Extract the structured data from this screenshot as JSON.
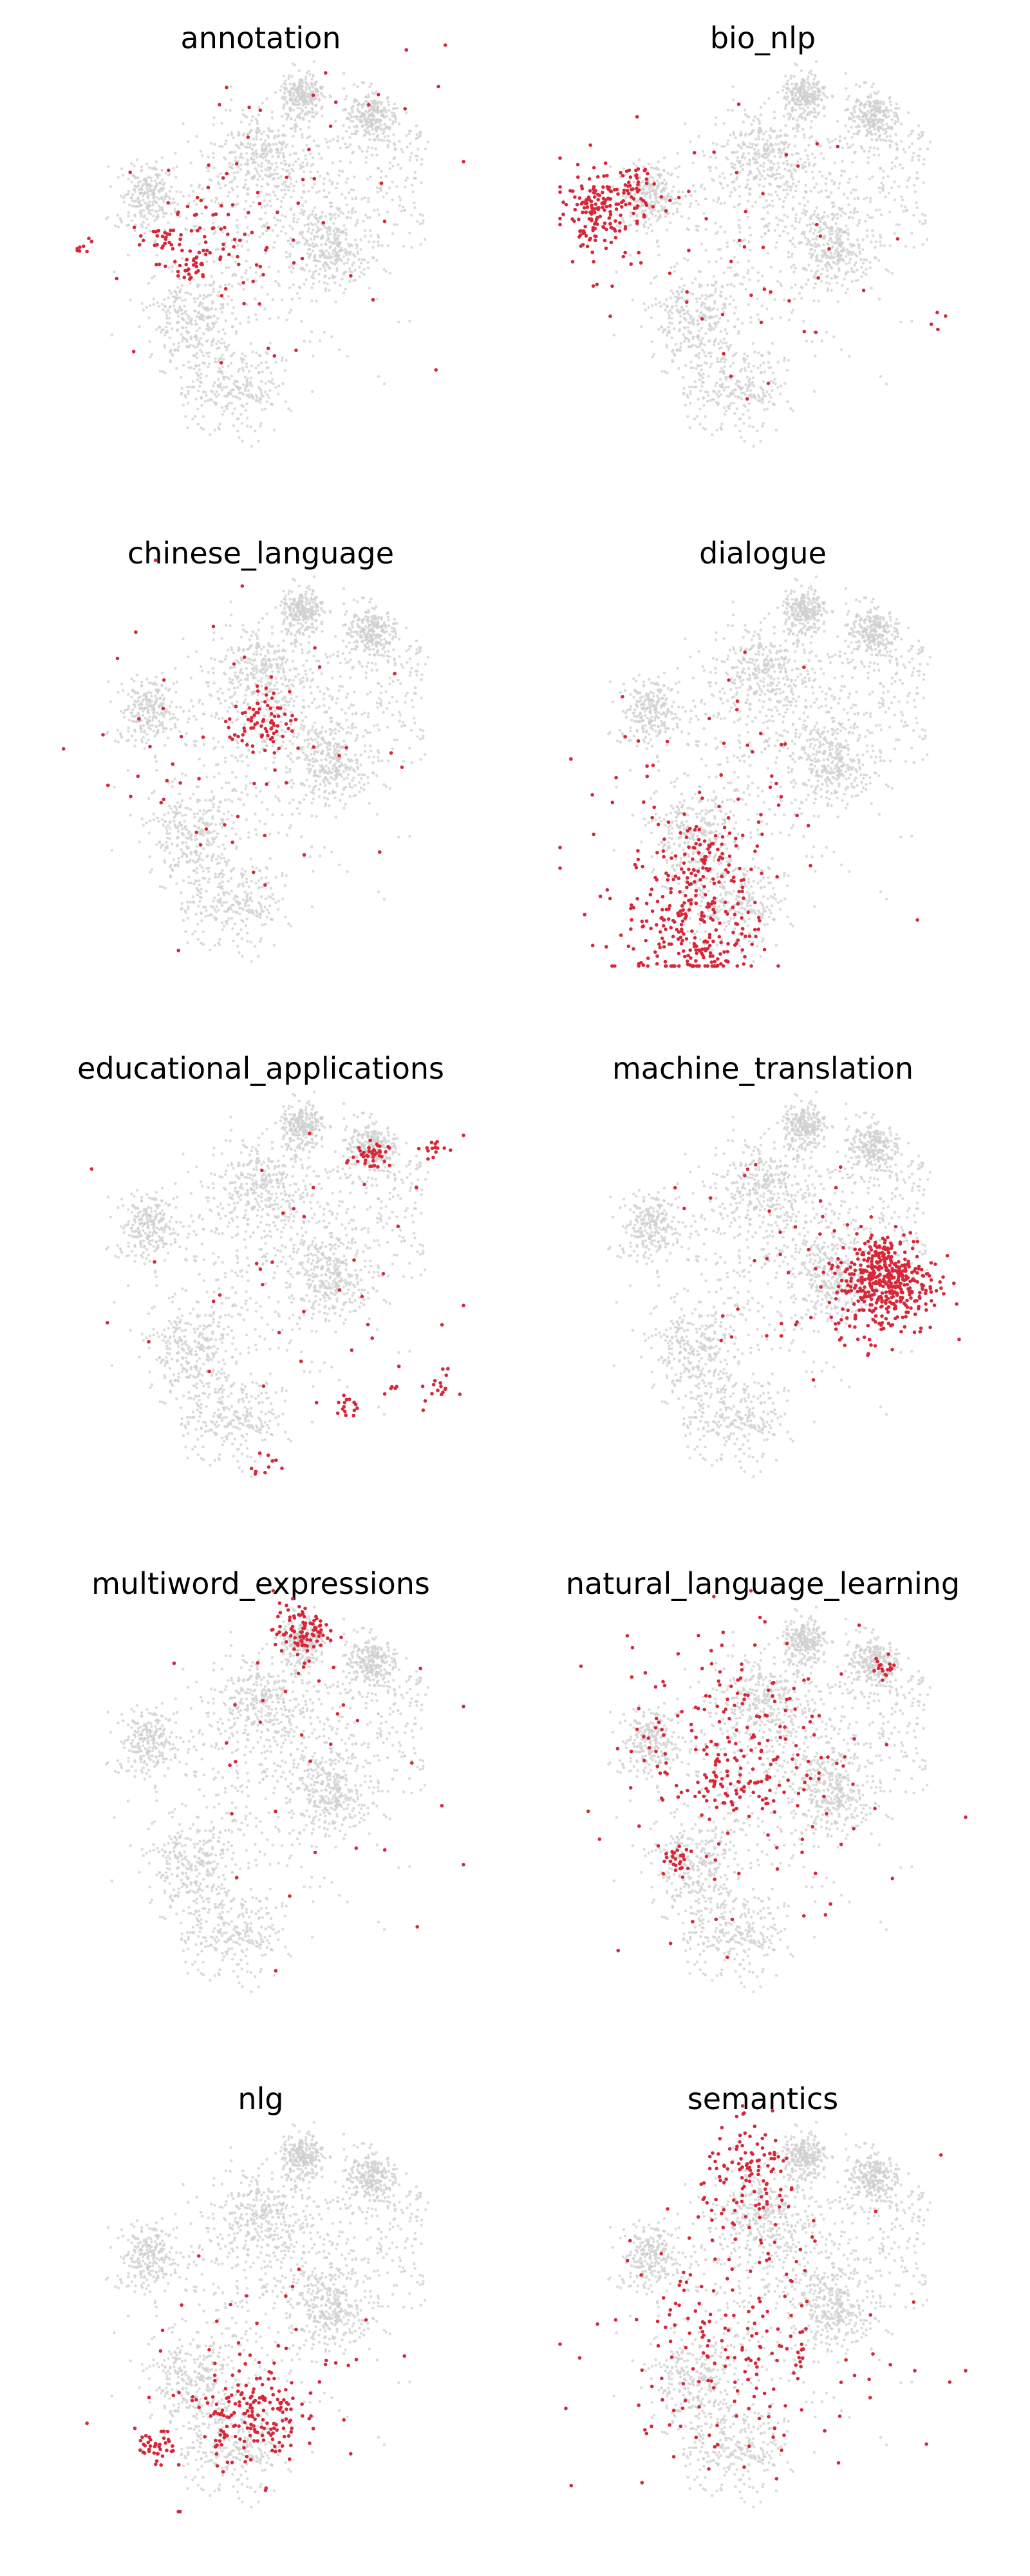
{
  "chart_data": {
    "type": "scatter",
    "highlight_color": "#d62839",
    "background_color": "#cfcfcf",
    "axes_visible": false,
    "grid": false,
    "panels": [
      {
        "title": "annotation",
        "clusters": [
          {
            "x": -0.48,
            "y": 0.04,
            "sd": 0.05,
            "n": 28
          },
          {
            "x": -0.35,
            "y": -0.1,
            "sd": 0.05,
            "n": 28
          },
          {
            "x": -0.2,
            "y": 0.05,
            "sd": 0.14,
            "n": 55
          },
          {
            "x": 0.05,
            "y": 0.22,
            "sd": 0.45,
            "n": 50
          },
          {
            "x": -0.87,
            "y": 0.01,
            "sd": 0.03,
            "n": 8
          }
        ]
      },
      {
        "title": "bio_nlp",
        "clusters": [
          {
            "x": -0.82,
            "y": 0.18,
            "sd": 0.09,
            "n": 150
          },
          {
            "x": -0.65,
            "y": 0.28,
            "sd": 0.06,
            "n": 45
          },
          {
            "x": -0.2,
            "y": 0.05,
            "sd": 0.35,
            "n": 55
          },
          {
            "x": 0.85,
            "y": -0.35,
            "sd": 0.05,
            "n": 4
          }
        ]
      },
      {
        "title": "chinese_language",
        "clusters": [
          {
            "x": 0.0,
            "y": 0.2,
            "sd": 0.07,
            "n": 75
          },
          {
            "x": -0.05,
            "y": 0.1,
            "sd": 0.4,
            "n": 55
          }
        ]
      },
      {
        "title": "dialogue",
        "clusters": [
          {
            "x": -0.35,
            "y": -0.78,
            "sd": 0.18,
            "n": 230
          },
          {
            "x": -0.3,
            "y": -0.45,
            "sd": 0.1,
            "n": 55
          },
          {
            "x": -0.25,
            "y": -0.95,
            "sd": 0.05,
            "n": 30
          },
          {
            "x": -0.3,
            "y": -0.3,
            "sd": 0.35,
            "n": 70
          }
        ]
      },
      {
        "title": "educational_applications",
        "clusters": [
          {
            "x": 0.55,
            "y": 0.6,
            "sd": 0.04,
            "n": 40
          },
          {
            "x": 0.85,
            "y": 0.64,
            "sd": 0.03,
            "n": 15
          },
          {
            "x": 0.87,
            "y": -0.53,
            "sd": 0.04,
            "n": 16
          },
          {
            "x": 0.42,
            "y": -0.65,
            "sd": 0.03,
            "n": 14
          },
          {
            "x": 0.65,
            "y": -0.55,
            "sd": 0.02,
            "n": 5
          },
          {
            "x": 0.0,
            "y": -0.92,
            "sd": 0.04,
            "n": 10
          },
          {
            "x": 0.2,
            "y": -0.1,
            "sd": 0.4,
            "n": 40
          }
        ]
      },
      {
        "title": "machine_translation",
        "clusters": [
          {
            "x": 0.6,
            "y": -0.02,
            "sd": 0.13,
            "n": 380
          },
          {
            "x": 0.6,
            "y": 0.05,
            "sd": 0.06,
            "n": 80
          },
          {
            "x": 0.1,
            "y": 0.05,
            "sd": 0.3,
            "n": 35
          }
        ]
      },
      {
        "title": "multiword_expressions",
        "clusters": [
          {
            "x": 0.2,
            "y": 0.8,
            "sd": 0.07,
            "n": 95
          },
          {
            "x": 0.0,
            "y": 0.1,
            "sd": 0.45,
            "n": 30
          }
        ]
      },
      {
        "title": "natural_language_learning",
        "clusters": [
          {
            "x": -0.15,
            "y": 0.25,
            "sd": 0.25,
            "n": 180
          },
          {
            "x": -0.42,
            "y": -0.32,
            "sd": 0.03,
            "n": 25
          },
          {
            "x": 0.6,
            "y": 0.62,
            "sd": 0.03,
            "n": 18
          },
          {
            "x": -0.18,
            "y": 0.05,
            "sd": 0.08,
            "n": 30
          },
          {
            "x": 0.0,
            "y": 0.0,
            "sd": 0.45,
            "n": 60
          }
        ]
      },
      {
        "title": "nlg",
        "clusters": [
          {
            "x": -0.05,
            "y": -0.52,
            "sd": 0.12,
            "n": 165
          },
          {
            "x": -0.52,
            "y": -0.7,
            "sd": 0.05,
            "n": 40
          },
          {
            "x": 0.0,
            "y": -0.3,
            "sd": 0.3,
            "n": 50
          }
        ]
      },
      {
        "title": "semantics",
        "clusters": [
          {
            "x": -0.05,
            "y": 0.65,
            "sd": 0.12,
            "n": 110
          },
          {
            "x": -0.15,
            "y": -0.15,
            "sd": 0.3,
            "n": 180
          },
          {
            "x": 0.0,
            "y": -0.1,
            "sd": 0.45,
            "n": 30
          }
        ]
      }
    ],
    "background_points": 2400
  }
}
